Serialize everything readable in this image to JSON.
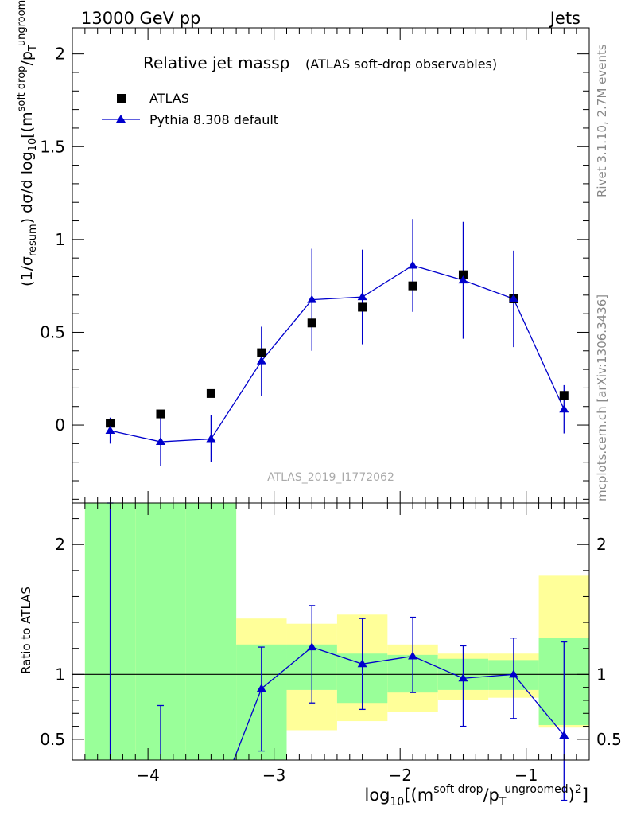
{
  "header": {
    "left": "13000 GeV pp",
    "right": "Jets"
  },
  "side_labels": {
    "rivet": "Rivet 3.1.10,  2.7M events",
    "mcplots": "mcplots.cern.ch [arXiv:1306.3436]"
  },
  "colors": {
    "pythia": "#0000cc",
    "atlas": "#000000",
    "band_inner": "#99ff99",
    "band_outer": "#ffff99"
  },
  "chart_data": [
    {
      "type": "scatter",
      "title": "Relative jet massρ",
      "subtitle": "(ATLAS soft-drop observables)",
      "watermark": "ATLAS_2019_I1772062",
      "ylabel": "(1/σresum) dσ/d log10[(m soft drop/pT ungroomed)2]",
      "ylim": [
        -0.42,
        2.14
      ],
      "xlim": [
        -4.6,
        -0.5
      ],
      "ytick_labels": [
        "0",
        "0.5",
        "1",
        "1.5",
        "2"
      ],
      "ytick_values": [
        0,
        0.5,
        1,
        1.5,
        2
      ],
      "legend_position": "top-left",
      "series": [
        {
          "name": "ATLAS",
          "marker": "square",
          "x": [
            -4.3,
            -3.9,
            -3.5,
            -3.1,
            -2.7,
            -2.3,
            -1.9,
            -1.5,
            -1.1,
            -0.7
          ],
          "y": [
            0.01,
            0.06,
            0.17,
            0.39,
            0.55,
            0.635,
            0.75,
            0.81,
            0.68,
            0.16
          ]
        },
        {
          "name": "Pythia 8.308 default",
          "marker": "triangle",
          "x": [
            -4.3,
            -3.9,
            -3.5,
            -3.1,
            -2.7,
            -2.3,
            -1.9,
            -1.5,
            -1.1,
            -0.7
          ],
          "y": [
            -0.03,
            -0.09,
            -0.075,
            0.345,
            0.675,
            0.69,
            0.86,
            0.78,
            0.68,
            0.085
          ],
          "err_low": [
            0.07,
            0.13,
            0.125,
            0.19,
            0.275,
            0.255,
            0.25,
            0.315,
            0.26,
            0.13
          ],
          "err_high": [
            0.07,
            0.13,
            0.13,
            0.185,
            0.275,
            0.255,
            0.25,
            0.315,
            0.26,
            0.13
          ]
        }
      ]
    },
    {
      "type": "line",
      "ylabel": "Ratio to ATLAS",
      "xlabel": "log10[(m soft drop/pT ungroomed)2]",
      "ylim": [
        0.34,
        2.32
      ],
      "xlim": [
        -4.6,
        -0.5
      ],
      "xtick_labels": [
        "−4",
        "−3",
        "−2",
        "−1"
      ],
      "xtick_values": [
        -4,
        -3,
        -2,
        -1
      ],
      "ytick_labels": [
        "0.5",
        "1",
        "2"
      ],
      "ytick_values": [
        0.5,
        1,
        2
      ],
      "reference_line": 1,
      "bins": [
        -4.5,
        -4.1,
        -3.7,
        -3.3,
        -2.9,
        -2.5,
        -2.1,
        -1.7,
        -1.3,
        -0.9,
        -0.5
      ],
      "band_inner_low": [
        0.34,
        0.34,
        0.34,
        0.34,
        0.88,
        0.78,
        0.86,
        0.88,
        0.88,
        0.61
      ],
      "band_inner_high": [
        2.32,
        2.32,
        2.32,
        1.23,
        1.23,
        1.16,
        1.15,
        1.12,
        1.11,
        1.28
      ],
      "band_outer_low": [
        0.34,
        0.34,
        0.34,
        0.65,
        0.57,
        0.64,
        0.71,
        0.8,
        0.82,
        0.59
      ],
      "band_outer_high": [
        2.32,
        2.32,
        2.32,
        1.43,
        1.39,
        1.46,
        1.23,
        1.16,
        1.16,
        1.76
      ],
      "series": [
        {
          "name": "Pythia 8.308 default",
          "x": [
            -4.3,
            -3.9,
            -3.5,
            -3.1,
            -2.7,
            -2.3,
            -1.9,
            -1.5,
            -1.1,
            -0.7
          ],
          "y": [
            null,
            null,
            null,
            0.89,
            1.21,
            1.08,
            1.14,
            0.97,
            1.0,
            0.53
          ],
          "err_low": [
            null,
            null,
            null,
            0.48,
            0.43,
            0.35,
            0.28,
            0.37,
            0.34,
            0.5
          ],
          "err_high": [
            null,
            null,
            null,
            0.32,
            0.32,
            0.35,
            0.3,
            0.25,
            0.28,
            0.72
          ]
        }
      ],
      "offscale_errorbars": [
        {
          "x": -4.3,
          "low": 0.34,
          "high": 2.32
        },
        {
          "x": -3.9,
          "low": 0.34,
          "high": 0.76
        }
      ]
    }
  ]
}
